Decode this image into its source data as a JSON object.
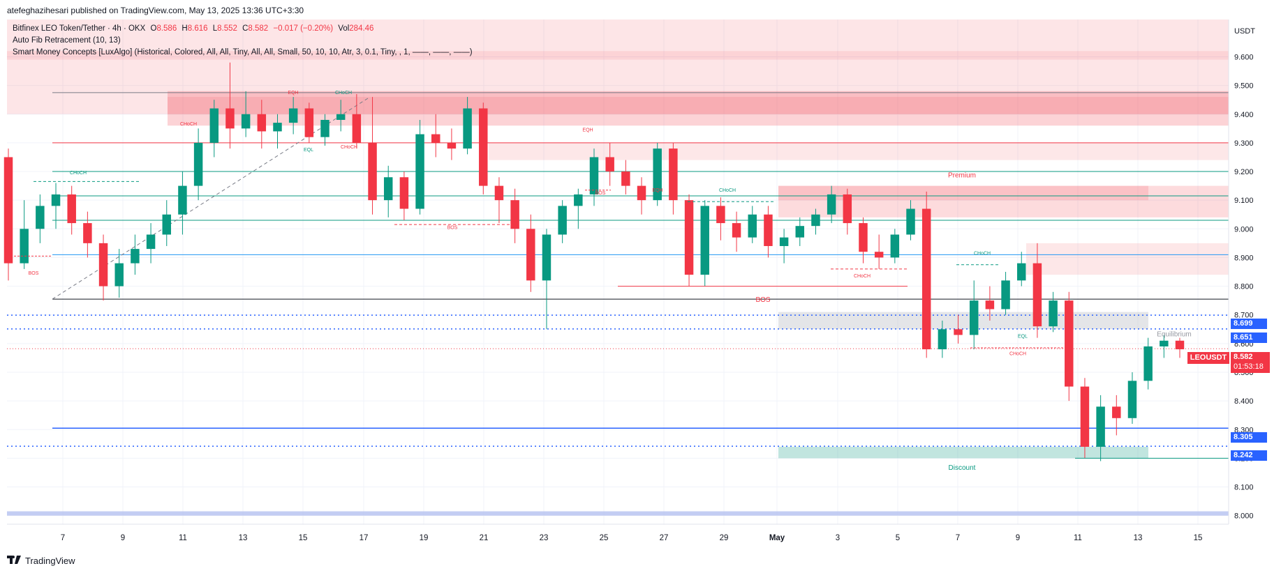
{
  "header": {
    "published": "atefeghazihesari published on TradingView.com, May 13, 2025 13:36 UTC+3:30"
  },
  "legend": {
    "symbol": "Bitfinex LEO Token/Tether · 4h · OKX",
    "o_label": "O",
    "o": "8.586",
    "h_label": "H",
    "h": "8.616",
    "l_label": "L",
    "l": "8.552",
    "c_label": "C",
    "c": "8.582",
    "change": "−0.017 (−0.20%)",
    "vol_label": "Vol",
    "vol": "284.46",
    "indicator1": "Auto Fib Retracement (10, 13)",
    "indicator2": "Smart Money Concepts [LuxAlgo] (Historical, Colored, All, All, Tiny, All, All, Small, 50, 10, 10, Atr, 3, 0.1, Tiny, , 1, ——, ——, ——)"
  },
  "branding": {
    "logo_text": "TradingView"
  },
  "price_tags": {
    "last_symbol": "LEOUSDT",
    "last_price": "8.582",
    "countdown": "01:53:18",
    "levels": [
      {
        "label": "8.699",
        "value": 8.699
      },
      {
        "label": "8.651",
        "value": 8.651
      },
      {
        "label": "8.305",
        "value": 8.305
      },
      {
        "label": "8.242",
        "value": 8.242
      }
    ]
  },
  "chart_data": {
    "type": "candlestick",
    "currency_label": "USDT",
    "ylim": [
      7.97,
      9.73
    ],
    "xlim_days": [
      "Apr 5",
      "May 17"
    ],
    "y_ticks": [
      "8.000",
      "8.100",
      "8.200",
      "8.300",
      "8.400",
      "8.500",
      "8.600",
      "8.700",
      "8.800",
      "8.900",
      "9.000",
      "9.100",
      "9.200",
      "9.300",
      "9.400",
      "9.500",
      "9.600"
    ],
    "x_ticks": [
      "7",
      "9",
      "11",
      "13",
      "15",
      "17",
      "19",
      "21",
      "23",
      "25",
      "27",
      "29",
      "May",
      "3",
      "5",
      "7",
      "9",
      "11",
      "13",
      "15"
    ],
    "annotations": [
      "Premium",
      "Equilibrium",
      "Discount",
      "BOS",
      "CHoCH",
      "EQH",
      "EQL"
    ],
    "colors": {
      "up": "#089981",
      "down": "#f23645",
      "premium": "#f23645",
      "discount": "#089981",
      "level": "#2962ff"
    },
    "candles": [
      [
        9.25,
        9.28,
        8.82,
        8.88
      ],
      [
        8.88,
        9.1,
        8.86,
        9.0
      ],
      [
        9.0,
        9.12,
        8.95,
        9.08
      ],
      [
        9.08,
        9.16,
        9.0,
        9.12
      ],
      [
        9.12,
        9.15,
        8.98,
        9.02
      ],
      [
        9.02,
        9.06,
        8.9,
        8.95
      ],
      [
        8.95,
        8.98,
        8.75,
        8.8
      ],
      [
        8.8,
        8.93,
        8.76,
        8.88
      ],
      [
        8.88,
        8.98,
        8.84,
        8.93
      ],
      [
        8.93,
        9.02,
        8.88,
        8.98
      ],
      [
        8.98,
        9.1,
        8.94,
        9.05
      ],
      [
        9.05,
        9.2,
        8.98,
        9.15
      ],
      [
        9.15,
        9.35,
        9.1,
        9.3
      ],
      [
        9.3,
        9.45,
        9.25,
        9.42
      ],
      [
        9.42,
        9.58,
        9.28,
        9.35
      ],
      [
        9.35,
        9.48,
        9.32,
        9.4
      ],
      [
        9.4,
        9.45,
        9.28,
        9.34
      ],
      [
        9.34,
        9.4,
        9.28,
        9.37
      ],
      [
        9.37,
        9.46,
        9.33,
        9.42
      ],
      [
        9.42,
        9.44,
        9.3,
        9.32
      ],
      [
        9.32,
        9.4,
        9.29,
        9.38
      ],
      [
        9.38,
        9.45,
        9.34,
        9.4
      ],
      [
        9.4,
        9.47,
        9.28,
        9.3
      ],
      [
        9.3,
        9.46,
        9.05,
        9.1
      ],
      [
        9.1,
        9.22,
        9.04,
        9.18
      ],
      [
        9.18,
        9.2,
        9.03,
        9.07
      ],
      [
        9.07,
        9.38,
        9.05,
        9.33
      ],
      [
        9.33,
        9.4,
        9.25,
        9.3
      ],
      [
        9.3,
        9.35,
        9.24,
        9.28
      ],
      [
        9.28,
        9.46,
        9.26,
        9.42
      ],
      [
        9.42,
        9.44,
        9.12,
        9.15
      ],
      [
        9.15,
        9.18,
        9.02,
        9.1
      ],
      [
        9.1,
        9.14,
        8.95,
        9.0
      ],
      [
        9.0,
        9.05,
        8.78,
        8.82
      ],
      [
        8.82,
        9.0,
        8.65,
        8.98
      ],
      [
        8.98,
        9.1,
        8.95,
        9.08
      ],
      [
        9.08,
        9.14,
        9.0,
        9.12
      ],
      [
        9.12,
        9.28,
        9.08,
        9.25
      ],
      [
        9.25,
        9.3,
        9.15,
        9.2
      ],
      [
        9.2,
        9.24,
        9.12,
        9.15
      ],
      [
        9.15,
        9.18,
        9.05,
        9.1
      ],
      [
        9.1,
        9.3,
        9.08,
        9.28
      ],
      [
        9.28,
        9.3,
        9.05,
        9.1
      ],
      [
        9.1,
        9.12,
        8.8,
        8.84
      ],
      [
        8.84,
        9.1,
        8.8,
        9.08
      ],
      [
        9.08,
        9.11,
        8.96,
        9.02
      ],
      [
        9.02,
        9.06,
        8.92,
        8.97
      ],
      [
        8.97,
        9.08,
        8.95,
        9.05
      ],
      [
        9.05,
        9.08,
        8.9,
        8.94
      ],
      [
        8.94,
        9.0,
        8.88,
        8.97
      ],
      [
        8.97,
        9.04,
        8.94,
        9.01
      ],
      [
        9.01,
        9.07,
        8.98,
        9.05
      ],
      [
        9.05,
        9.15,
        9.02,
        9.12
      ],
      [
        9.12,
        9.14,
        8.98,
        9.02
      ],
      [
        9.02,
        9.04,
        8.88,
        8.92
      ],
      [
        8.92,
        8.98,
        8.86,
        8.9
      ],
      [
        8.9,
        9.0,
        8.88,
        8.98
      ],
      [
        8.98,
        9.1,
        8.96,
        9.07
      ],
      [
        9.07,
        9.13,
        8.55,
        8.58
      ],
      [
        8.58,
        8.68,
        8.55,
        8.65
      ],
      [
        8.65,
        8.7,
        8.6,
        8.63
      ],
      [
        8.63,
        8.82,
        8.58,
        8.75
      ],
      [
        8.75,
        8.8,
        8.68,
        8.72
      ],
      [
        8.72,
        8.85,
        8.7,
        8.82
      ],
      [
        8.82,
        8.92,
        8.8,
        8.88
      ],
      [
        8.88,
        8.95,
        8.62,
        8.66
      ],
      [
        8.66,
        8.78,
        8.64,
        8.75
      ],
      [
        8.75,
        8.78,
        8.4,
        8.45
      ],
      [
        8.45,
        8.48,
        8.2,
        8.24
      ],
      [
        8.24,
        8.42,
        8.19,
        8.38
      ],
      [
        8.38,
        8.42,
        8.28,
        8.34
      ],
      [
        8.34,
        8.5,
        8.32,
        8.47
      ],
      [
        8.47,
        8.62,
        8.44,
        8.59
      ],
      [
        8.59,
        8.63,
        8.55,
        8.61
      ],
      [
        8.61,
        8.62,
        8.55,
        8.58
      ]
    ]
  }
}
